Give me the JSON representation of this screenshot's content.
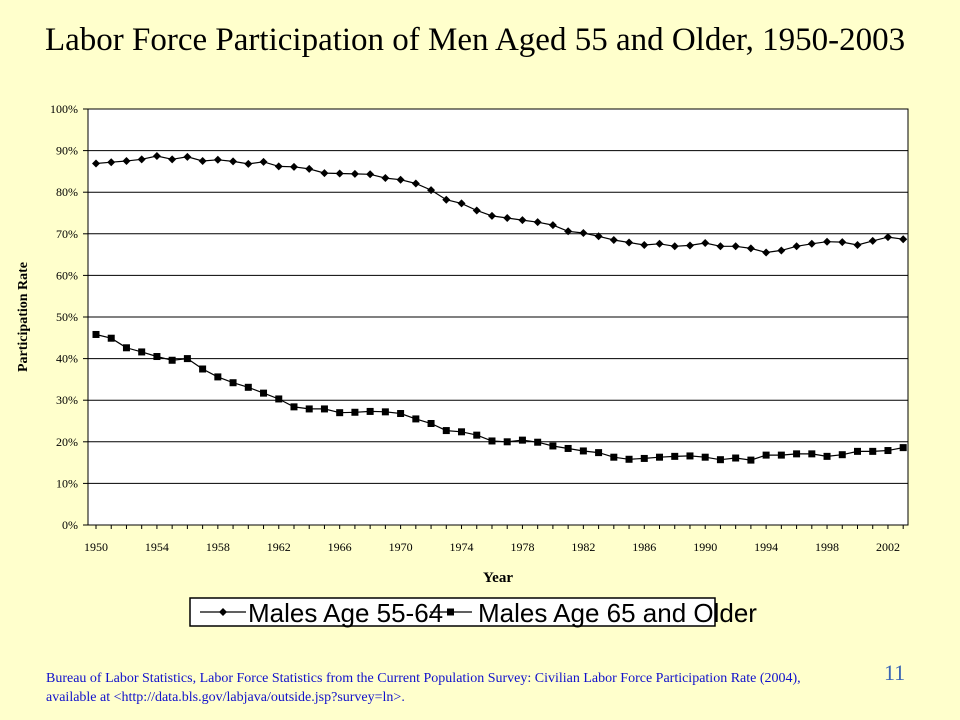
{
  "slide": {
    "title": "Labor Force Participation of Men Aged 55 and Older, 1950-2003",
    "source_line1": "Bureau of Labor Statistics, Labor Force Statistics from the Current Population Survey: Civilian Labor Force Participation Rate (2004),",
    "source_line2": "available at <http://data.bls.gov/labjava/outside.jsp?survey=ln>.",
    "page_number": "11",
    "background_color": "#FFFFCC",
    "source_text_color": "#1010CC",
    "page_number_color": "#3A66B5"
  },
  "chart_data": {
    "type": "line",
    "title": "",
    "xlabel": "Year",
    "ylabel": "Participation Rate",
    "ylim": [
      0,
      100
    ],
    "y_ticks": [
      "0%",
      "10%",
      "20%",
      "30%",
      "40%",
      "50%",
      "60%",
      "70%",
      "80%",
      "90%",
      "100%"
    ],
    "x_ticks": [
      "1950",
      "1954",
      "1958",
      "1962",
      "1966",
      "1970",
      "1974",
      "1978",
      "1982",
      "1986",
      "1990",
      "1994",
      "1998",
      "2002"
    ],
    "grid": "horizontal",
    "legend_position": "bottom",
    "x": [
      1950,
      1951,
      1952,
      1953,
      1954,
      1955,
      1956,
      1957,
      1958,
      1959,
      1960,
      1961,
      1962,
      1963,
      1964,
      1965,
      1966,
      1967,
      1968,
      1969,
      1970,
      1971,
      1972,
      1973,
      1974,
      1975,
      1976,
      1977,
      1978,
      1979,
      1980,
      1981,
      1982,
      1983,
      1984,
      1985,
      1986,
      1987,
      1988,
      1989,
      1990,
      1991,
      1992,
      1993,
      1994,
      1995,
      1996,
      1997,
      1998,
      1999,
      2000,
      2001,
      2002,
      2003
    ],
    "series": [
      {
        "name": "Males Age 55-64",
        "marker": "diamond",
        "values": [
          86.9,
          87.2,
          87.5,
          87.9,
          88.7,
          87.9,
          88.5,
          87.5,
          87.8,
          87.4,
          86.8,
          87.3,
          86.2,
          86.1,
          85.6,
          84.6,
          84.5,
          84.4,
          84.3,
          83.4,
          83.0,
          82.1,
          80.5,
          78.2,
          77.3,
          75.6,
          74.3,
          73.8,
          73.3,
          72.8,
          72.1,
          70.6,
          70.2,
          69.4,
          68.5,
          67.9,
          67.3,
          67.6,
          67.0,
          67.2,
          67.8,
          67.0,
          67.0,
          66.5,
          65.5,
          66.0,
          67.0,
          67.6,
          68.1,
          68.0,
          67.3,
          68.3,
          69.2,
          68.7
        ]
      },
      {
        "name": "Males Age 65 and Older",
        "marker": "square",
        "values": [
          45.8,
          44.9,
          42.6,
          41.6,
          40.5,
          39.6,
          40.0,
          37.5,
          35.6,
          34.2,
          33.1,
          31.7,
          30.3,
          28.4,
          27.9,
          27.9,
          27.0,
          27.1,
          27.3,
          27.2,
          26.8,
          25.5,
          24.4,
          22.7,
          22.4,
          21.6,
          20.2,
          20.0,
          20.4,
          19.9,
          19.0,
          18.4,
          17.8,
          17.4,
          16.3,
          15.8,
          16.0,
          16.3,
          16.5,
          16.6,
          16.3,
          15.7,
          16.1,
          15.6,
          16.8,
          16.8,
          17.1,
          17.1,
          16.5,
          16.9,
          17.7,
          17.7,
          17.9,
          18.6
        ]
      }
    ]
  }
}
